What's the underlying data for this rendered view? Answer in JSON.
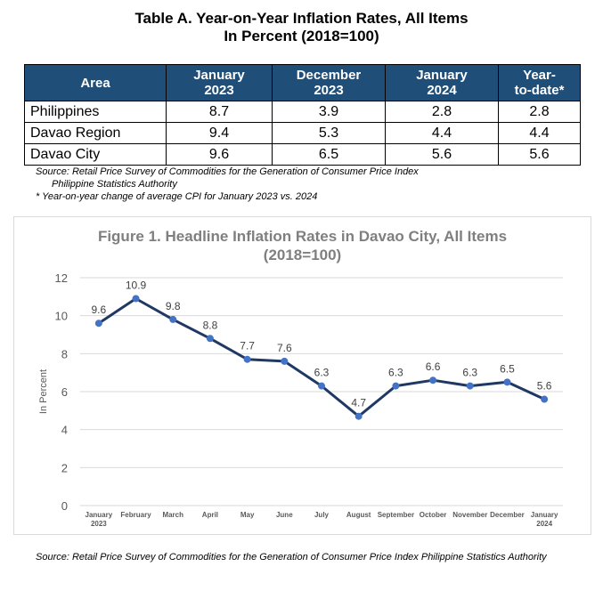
{
  "table": {
    "title_line1": "Table A. Year-on-Year Inflation Rates, All Items",
    "title_line2": "In Percent (2018=100)",
    "headers": [
      {
        "line1": "Area",
        "line2": ""
      },
      {
        "line1": "January",
        "line2": "2023"
      },
      {
        "line1": "December",
        "line2": "2023"
      },
      {
        "line1": "January",
        "line2": "2024"
      },
      {
        "line1": "Year-",
        "line2": "to-date*"
      }
    ],
    "rows": [
      {
        "area": "Philippines",
        "jan2023": "8.7",
        "dec2023": "3.9",
        "jan2024": "2.8",
        "ytd": "2.8"
      },
      {
        "area": "Davao Region",
        "jan2023": "9.4",
        "dec2023": "5.3",
        "jan2024": "4.4",
        "ytd": "4.4"
      },
      {
        "area": "Davao City",
        "jan2023": "9.6",
        "dec2023": "6.5",
        "jan2024": "5.6",
        "ytd": "5.6"
      }
    ],
    "source_line1": "Source: Retail Price Survey of Commodities for the Generation of Consumer Price Index",
    "source_line2": "Philippine Statistics Authority",
    "footnote": "* Year-on-year change of average CPI for January 2023 vs. 2024"
  },
  "chart_data": {
    "type": "line",
    "title_line1": "Figure 1. Headline Inflation Rates in Davao City, All Items",
    "title_line2": "(2018=100)",
    "ylabel": "In Percent",
    "xlabel": "",
    "categories": [
      {
        "line1": "January",
        "line2": "2023"
      },
      {
        "line1": "February",
        "line2": ""
      },
      {
        "line1": "March",
        "line2": ""
      },
      {
        "line1": "April",
        "line2": ""
      },
      {
        "line1": "May",
        "line2": ""
      },
      {
        "line1": "June",
        "line2": ""
      },
      {
        "line1": "July",
        "line2": ""
      },
      {
        "line1": "August",
        "line2": ""
      },
      {
        "line1": "September",
        "line2": ""
      },
      {
        "line1": "October",
        "line2": ""
      },
      {
        "line1": "November",
        "line2": ""
      },
      {
        "line1": "December",
        "line2": ""
      },
      {
        "line1": "January",
        "line2": "2024"
      }
    ],
    "values": [
      9.6,
      10.9,
      9.8,
      8.8,
      7.7,
      7.6,
      6.3,
      4.7,
      6.3,
      6.6,
      6.3,
      6.5,
      5.6
    ],
    "ylim": [
      0,
      12
    ],
    "yticks": [
      0,
      2,
      4,
      6,
      8,
      10,
      12
    ],
    "grid": true,
    "colors": {
      "line": "#203864",
      "marker": "#4472c4",
      "grid": "#d9d9d9",
      "title": "#7f7f7f"
    }
  },
  "bottom_source": "Source: Retail Price Survey of Commodities for the Generation of Consumer Price Index Philippine Statistics Authority"
}
